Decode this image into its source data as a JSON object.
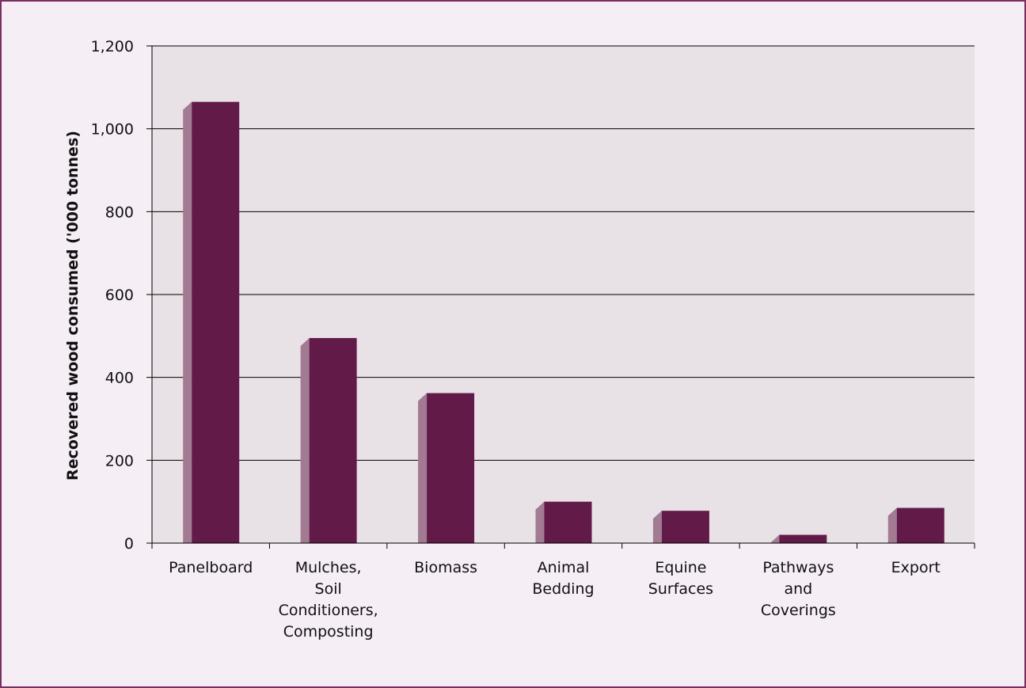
{
  "chart_data": {
    "type": "bar",
    "title": "",
    "xlabel": "",
    "ylabel": "Recovered wood consumed ('000 tonnes)",
    "ylim": [
      0,
      1200
    ],
    "yticks": [
      0,
      200,
      400,
      600,
      800,
      1000,
      1200
    ],
    "ytick_labels": [
      "0",
      "200",
      "400",
      "600",
      "800",
      "1,000",
      "1,200"
    ],
    "categories": [
      "Panelboard",
      "Mulches, Soil Conditioners, Composting",
      "Biomass",
      "Animal Bedding",
      "Equine Surfaces",
      "Pathways and Coverings",
      "Export"
    ],
    "category_label_lines": [
      [
        "Panelboard"
      ],
      [
        "Mulches,",
        "Soil",
        "Conditioners,",
        "Composting"
      ],
      [
        "Biomass"
      ],
      [
        "Animal",
        "Bedding"
      ],
      [
        "Equine",
        "Surfaces"
      ],
      [
        "Pathways",
        "and",
        "Coverings"
      ],
      [
        "Export"
      ]
    ],
    "values": [
      1065,
      495,
      362,
      100,
      78,
      20,
      85
    ],
    "grid": true,
    "legend": "none"
  },
  "colors": {
    "bar_front": "#621a49",
    "bar_side": "#a27b93",
    "plot_background": "#e8e1e6",
    "page_background": "#f5eef5",
    "frame_border": "#7a2f5e",
    "gridline": "#000000"
  }
}
